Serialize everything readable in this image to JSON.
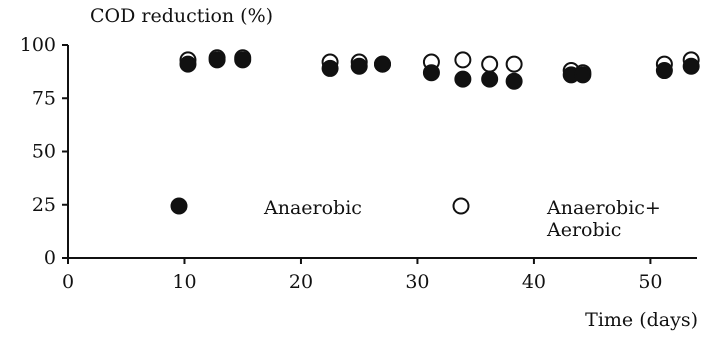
{
  "chart_data": {
    "type": "scatter",
    "title": "",
    "ylabel": "COD reduction (%)",
    "xlabel": "Time (days)",
    "xlim": [
      0,
      54
    ],
    "ylim": [
      0,
      100
    ],
    "xticks": [
      0,
      10,
      20,
      30,
      40,
      50
    ],
    "yticks": [
      0,
      25,
      50,
      75,
      100
    ],
    "legend_position": "inside-lower",
    "series": [
      {
        "name": "Anaerobic",
        "marker": "filled-circle",
        "color": "#111111",
        "points": [
          [
            10.3,
            91
          ],
          [
            12.8,
            93
          ],
          [
            15.0,
            93
          ],
          [
            22.5,
            89
          ],
          [
            25.0,
            90
          ],
          [
            27.0,
            91
          ],
          [
            31.2,
            87
          ],
          [
            33.9,
            84
          ],
          [
            36.2,
            84
          ],
          [
            38.3,
            83
          ],
          [
            43.2,
            86
          ],
          [
            44.2,
            86
          ],
          [
            51.2,
            88
          ],
          [
            53.5,
            90
          ]
        ]
      },
      {
        "name": "Anaerobic+\nAerobic",
        "marker": "open-circle",
        "color": "#111111",
        "points": [
          [
            10.3,
            93
          ],
          [
            12.8,
            94
          ],
          [
            15.0,
            94
          ],
          [
            22.5,
            92
          ],
          [
            25.0,
            92
          ],
          [
            27.0,
            91
          ],
          [
            31.2,
            92
          ],
          [
            33.9,
            93
          ],
          [
            36.2,
            91
          ],
          [
            38.3,
            91
          ],
          [
            43.2,
            88
          ],
          [
            44.2,
            87
          ],
          [
            51.2,
            91
          ],
          [
            53.5,
            93
          ]
        ]
      }
    ],
    "legend": {
      "entries": [
        "Anaerobic",
        "Anaerobic+",
        "Aerobic"
      ]
    }
  }
}
